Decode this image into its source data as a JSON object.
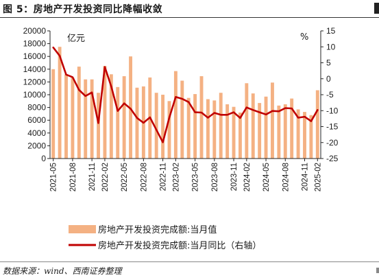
{
  "header": {
    "title": "图 5：房地产开发投资同比降幅收敛"
  },
  "footer": {
    "source": "数据来源：wind、西南证券整理"
  },
  "chart_data": {
    "type": "bar+line",
    "left_axis_unit": "亿元",
    "right_axis_unit": "%",
    "ylim_left": [
      0,
      20000
    ],
    "yticks_left": [
      0,
      2000,
      4000,
      6000,
      8000,
      10000,
      12000,
      14000,
      16000,
      18000,
      20000
    ],
    "ylim_right": [
      -25,
      15
    ],
    "yticks_right": [
      -25,
      -20,
      -15,
      -10,
      -5,
      0,
      5,
      10,
      15
    ],
    "x_tick_labels": [
      "2021-05",
      "2021-08",
      "2021-11",
      "2022-02",
      "2022-05",
      "2022-08",
      "2022-11",
      "2023-02",
      "2023-05",
      "2023-08",
      "2023-11",
      "2024-02",
      "2024-05",
      "2024-08",
      "2024-11",
      "2025-02"
    ],
    "categories": [
      "2021-05",
      "2021-06",
      "2021-07",
      "2021-08",
      "2021-09",
      "2021-10",
      "2021-11",
      "2021-12",
      "2022-02",
      "2022-03",
      "2022-04",
      "2022-05",
      "2022-06",
      "2022-07",
      "2022-08",
      "2022-09",
      "2022-10",
      "2022-11",
      "2022-12",
      "2023-02",
      "2023-03",
      "2023-04",
      "2023-05",
      "2023-06",
      "2023-07",
      "2023-08",
      "2023-09",
      "2023-10",
      "2023-11",
      "2023-12",
      "2024-02",
      "2024-03",
      "2024-04",
      "2024-05",
      "2024-06",
      "2024-07",
      "2024-08",
      "2024-09",
      "2024-10",
      "2024-11",
      "2024-12",
      "2025-02"
    ],
    "series": [
      {
        "name": "房地产开发投资完成额:当月值",
        "kind": "bar",
        "axis": "left",
        "color": "#f4b183",
        "values": [
          14000,
          17500,
          13200,
          12700,
          14400,
          12400,
          12400,
          10300,
          14500,
          13200,
          11200,
          12900,
          16000,
          11100,
          11300,
          12700,
          10300,
          10000,
          9000,
          13700,
          12200,
          9500,
          10100,
          12900,
          9300,
          9100,
          10300,
          8500,
          8100,
          7200,
          11800,
          10200,
          8700,
          9700,
          11900,
          8300,
          8500,
          9400,
          7700,
          7300,
          6800,
          10700
        ]
      },
      {
        "name": "房地产开发投资完成额:当月同比（右轴）",
        "kind": "line",
        "axis": "right",
        "color": "#c00000",
        "values": [
          9.8,
          7.2,
          1.3,
          0.5,
          -3.5,
          -5.4,
          -4.3,
          -13.9,
          3.7,
          -2.4,
          -10.1,
          -7.7,
          -9.4,
          -12.3,
          -13.8,
          -12.1,
          -16.0,
          -19.9,
          -12.2,
          -5.7,
          -6.3,
          -7.3,
          -10.5,
          -10.6,
          -12.2,
          -10.7,
          -11.3,
          -11.3,
          -10.5,
          -12.3,
          -9.0,
          -9.8,
          -10.5,
          -11.2,
          -10.1,
          -10.2,
          -9.2,
          -9.3,
          -12.2,
          -11.9,
          -13.3,
          -9.8
        ]
      }
    ],
    "legend_position": "bottom",
    "grid": false
  }
}
